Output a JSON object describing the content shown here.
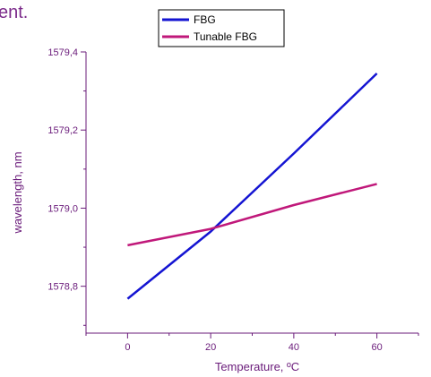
{
  "page": {
    "top_text": "ent."
  },
  "chart_data": {
    "type": "line",
    "xlabel": "Temperature, ºC",
    "ylabel": "wavelength, nm",
    "xlim": [
      -10,
      70
    ],
    "ylim": [
      1578.68,
      1579.4
    ],
    "x_ticks": [
      0,
      20,
      40,
      60
    ],
    "x_tick_labels": [
      "0",
      "20",
      "40",
      "60"
    ],
    "y_ticks": [
      1578.8,
      1579.0,
      1579.2,
      1579.4
    ],
    "y_tick_labels": [
      "1578,8",
      "1579,0",
      "1579,2",
      "1579,4"
    ],
    "grid": false,
    "legend_position": "top-center",
    "series": [
      {
        "name": "FBG",
        "color": "#1414d2",
        "x": [
          0,
          20,
          40,
          60
        ],
        "y": [
          1578.768,
          1578.94,
          1579.14,
          1579.345
        ]
      },
      {
        "name": "Tunable FBG",
        "color": "#c0187a",
        "x": [
          0,
          20,
          40,
          60
        ],
        "y": [
          1578.905,
          1578.947,
          1579.008,
          1579.062
        ]
      }
    ],
    "colors": {
      "axis": "#6a1b7a",
      "text": "#6a1b7a"
    }
  }
}
